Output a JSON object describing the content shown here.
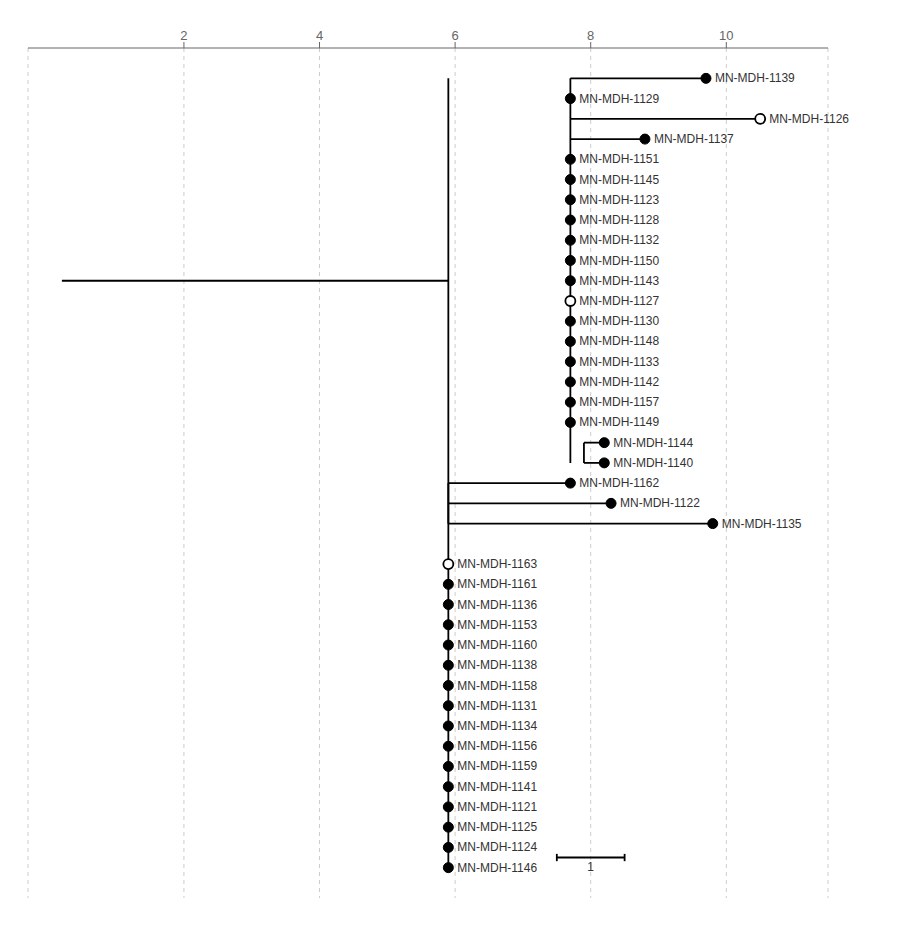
{
  "chart_data": {
    "type": "tree",
    "xlim": [
      -0.3,
      11.5
    ],
    "xticks": [
      2,
      4,
      6,
      8,
      10
    ],
    "ylim": [
      -0.5,
      41.5
    ],
    "grid": true,
    "tick_labels": "x",
    "color": "black",
    "nodes": [
      {
        "name": "MN-MDH-1139",
        "x": 9.7,
        "y": 1,
        "filled": true,
        "branch_from": 7.7
      },
      {
        "name": "MN-MDH-1129",
        "x": 7.7,
        "y": 2,
        "filled": true,
        "branch_from": 7.7
      },
      {
        "name": "MN-MDH-1126",
        "x": 10.5,
        "y": 3,
        "filled": false,
        "branch_from": 7.7
      },
      {
        "name": "MN-MDH-1137",
        "x": 8.8,
        "y": 4,
        "filled": true,
        "branch_from": 7.7
      },
      {
        "name": "MN-MDH-1151",
        "x": 7.7,
        "y": 5,
        "filled": true,
        "branch_from": 7.7
      },
      {
        "name": "MN-MDH-1145",
        "x": 7.7,
        "y": 6,
        "filled": true,
        "branch_from": 7.7
      },
      {
        "name": "MN-MDH-1123",
        "x": 7.7,
        "y": 7,
        "filled": true,
        "branch_from": 7.7
      },
      {
        "name": "MN-MDH-1128",
        "x": 7.7,
        "y": 8,
        "filled": true,
        "branch_from": 7.7
      },
      {
        "name": "MN-MDH-1132",
        "x": 7.7,
        "y": 9,
        "filled": true,
        "branch_from": 7.7
      },
      {
        "name": "MN-MDH-1150",
        "x": 7.7,
        "y": 10,
        "filled": true,
        "branch_from": 7.7
      },
      {
        "name": "MN-MDH-1143",
        "x": 7.7,
        "y": 11,
        "filled": true,
        "branch_from": 7.7
      },
      {
        "name": "MN-MDH-1127",
        "x": 7.7,
        "y": 12,
        "filled": false,
        "branch_from": 7.7
      },
      {
        "name": "MN-MDH-1130",
        "x": 7.7,
        "y": 13,
        "filled": true,
        "branch_from": 7.7
      },
      {
        "name": "MN-MDH-1148",
        "x": 7.7,
        "y": 14,
        "filled": true,
        "branch_from": 7.7
      },
      {
        "name": "MN-MDH-1133",
        "x": 7.7,
        "y": 15,
        "filled": true,
        "branch_from": 7.7
      },
      {
        "name": "MN-MDH-1142",
        "x": 7.7,
        "y": 16,
        "filled": true,
        "branch_from": 7.7
      },
      {
        "name": "MN-MDH-1157",
        "x": 7.7,
        "y": 17,
        "filled": true,
        "branch_from": 7.7
      },
      {
        "name": "MN-MDH-1149",
        "x": 7.7,
        "y": 18,
        "filled": true,
        "branch_from": 7.7
      },
      {
        "name": "MN-MDH-1144",
        "x": 8.2,
        "y": 19,
        "filled": true,
        "branch_from": 7.9
      },
      {
        "name": "MN-MDH-1140",
        "x": 8.2,
        "y": 20,
        "filled": true,
        "branch_from": 7.9
      },
      {
        "name": "MN-MDH-1162",
        "x": 7.7,
        "y": 21,
        "filled": true,
        "branch_from": 5.9
      },
      {
        "name": "MN-MDH-1122",
        "x": 8.3,
        "y": 22,
        "filled": true,
        "branch_from": 5.9
      },
      {
        "name": "MN-MDH-1135",
        "x": 9.8,
        "y": 23,
        "filled": true,
        "branch_from": 5.9
      },
      {
        "name": "MN-MDH-1163",
        "x": 5.9,
        "y": 25,
        "filled": false,
        "branch_from": 5.9
      },
      {
        "name": "MN-MDH-1161",
        "x": 5.9,
        "y": 26,
        "filled": true,
        "branch_from": 5.9
      },
      {
        "name": "MN-MDH-1136",
        "x": 5.9,
        "y": 27,
        "filled": true,
        "branch_from": 5.9
      },
      {
        "name": "MN-MDH-1153",
        "x": 5.9,
        "y": 28,
        "filled": true,
        "branch_from": 5.9
      },
      {
        "name": "MN-MDH-1160",
        "x": 5.9,
        "y": 29,
        "filled": true,
        "branch_from": 5.9
      },
      {
        "name": "MN-MDH-1138",
        "x": 5.9,
        "y": 30,
        "filled": true,
        "branch_from": 5.9
      },
      {
        "name": "MN-MDH-1158",
        "x": 5.9,
        "y": 31,
        "filled": true,
        "branch_from": 5.9
      },
      {
        "name": "MN-MDH-1131",
        "x": 5.9,
        "y": 32,
        "filled": true,
        "branch_from": 5.9
      },
      {
        "name": "MN-MDH-1134",
        "x": 5.9,
        "y": 33,
        "filled": true,
        "branch_from": 5.9
      },
      {
        "name": "MN-MDH-1156",
        "x": 5.9,
        "y": 34,
        "filled": true,
        "branch_from": 5.9
      },
      {
        "name": "MN-MDH-1159",
        "x": 5.9,
        "y": 35,
        "filled": true,
        "branch_from": 5.9
      },
      {
        "name": "MN-MDH-1141",
        "x": 5.9,
        "y": 36,
        "filled": true,
        "branch_from": 5.9
      },
      {
        "name": "MN-MDH-1121",
        "x": 5.9,
        "y": 37,
        "filled": true,
        "branch_from": 5.9
      },
      {
        "name": "MN-MDH-1125",
        "x": 5.9,
        "y": 38,
        "filled": true,
        "branch_from": 5.9
      },
      {
        "name": "MN-MDH-1124",
        "x": 5.9,
        "y": 39,
        "filled": true,
        "branch_from": 5.9
      },
      {
        "name": "MN-MDH-1146",
        "x": 5.9,
        "y": 40,
        "filled": true,
        "branch_from": 5.9
      }
    ],
    "segments": [
      {
        "x": [
          0.2,
          5.9
        ],
        "y": [
          11.0,
          11.0
        ]
      },
      {
        "x": [
          5.9,
          5.9
        ],
        "y": [
          1,
          40
        ]
      },
      {
        "x": [
          7.7,
          7.7
        ],
        "y": [
          1,
          20
        ]
      },
      {
        "x": [
          7.9,
          7.9
        ],
        "y": [
          19,
          20
        ]
      },
      {
        "x": [
          5.9,
          5.9
        ],
        "y": [
          21,
          23
        ]
      }
    ],
    "scale_bar": {
      "x": [
        7.5,
        8.5
      ],
      "y": 39.5,
      "label": "1"
    }
  }
}
